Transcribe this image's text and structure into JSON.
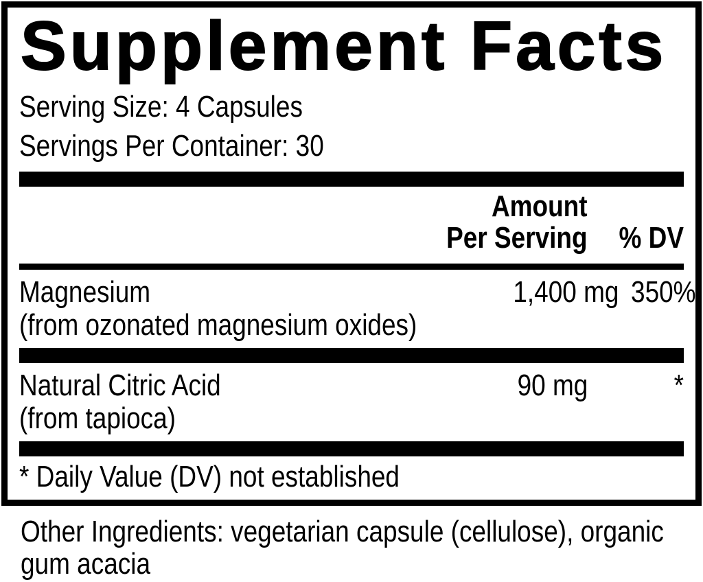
{
  "label": {
    "title": "Supplement Facts",
    "serving_size": "Serving Size: 4 Capsules",
    "servings_per_container": "Servings Per Container: 30",
    "header": {
      "amount_line1": "Amount",
      "amount_line2": "Per Serving",
      "dv": "% DV"
    },
    "rows": [
      {
        "name": "Magnesium",
        "detail": "(from ozonated magnesium oxides)",
        "amount": "1,400 mg",
        "dv": "350%"
      },
      {
        "name": "Natural Citric Acid",
        "detail": "(from tapioca)",
        "amount": "90 mg",
        "dv": "*"
      }
    ],
    "footnote": "* Daily Value (DV) not established"
  },
  "other_ingredients": {
    "lines": [
      "Other Ingredients: vegetarian capsule (cellulose), organic",
      "gum acacia"
    ]
  },
  "colors": {
    "ink": "#000000",
    "paper": "#ffffff"
  }
}
